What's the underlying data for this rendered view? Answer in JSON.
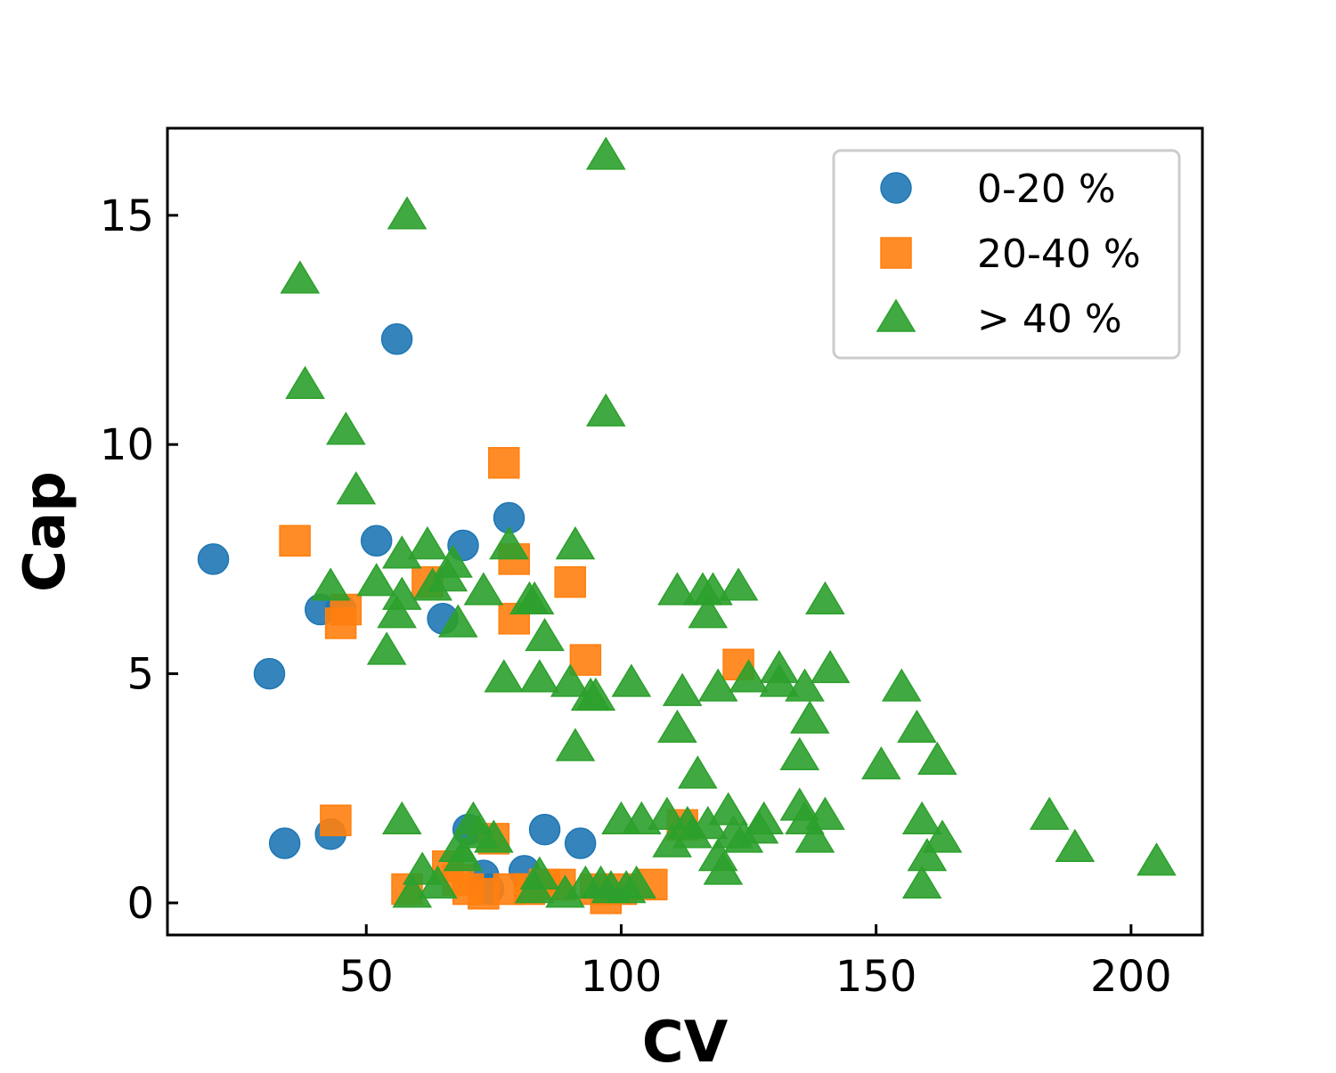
{
  "chart_data": {
    "type": "scatter",
    "xlabel": "CV",
    "ylabel": "Cap",
    "xlim": [
      11,
      214
    ],
    "ylim": [
      -0.7,
      16.9
    ],
    "xticks": [
      50,
      100,
      150,
      200
    ],
    "yticks": [
      0,
      5,
      10,
      15
    ],
    "grid": false,
    "legend_position": "top-right",
    "series": [
      {
        "name": "0-20 %",
        "marker": "circle",
        "color": "#1f77b4",
        "points": [
          [
            20,
            7.5
          ],
          [
            31,
            5.0
          ],
          [
            34,
            1.3
          ],
          [
            41,
            6.4
          ],
          [
            43,
            1.5
          ],
          [
            45,
            6.4
          ],
          [
            52,
            7.9
          ],
          [
            56,
            12.3
          ],
          [
            65,
            6.2
          ],
          [
            69,
            7.8
          ],
          [
            70,
            1.6
          ],
          [
            73,
            0.6
          ],
          [
            74,
            0.3
          ],
          [
            78,
            8.4
          ],
          [
            81,
            0.7
          ],
          [
            85,
            1.6
          ],
          [
            92,
            1.3
          ]
        ]
      },
      {
        "name": "20-40 %",
        "marker": "square",
        "color": "#ff7f0e",
        "points": [
          [
            36,
            7.9
          ],
          [
            44,
            1.8
          ],
          [
            45,
            6.1
          ],
          [
            46,
            6.4
          ],
          [
            58,
            0.3
          ],
          [
            62,
            7.0
          ],
          [
            66,
            0.8
          ],
          [
            68,
            0.5
          ],
          [
            70,
            0.3
          ],
          [
            73,
            0.2
          ],
          [
            75,
            1.4
          ],
          [
            77,
            9.6
          ],
          [
            78,
            0.3
          ],
          [
            79,
            7.5
          ],
          [
            79,
            6.2
          ],
          [
            82,
            0.3
          ],
          [
            85,
            0.4
          ],
          [
            88,
            0.4
          ],
          [
            90,
            7.0
          ],
          [
            93,
            5.3
          ],
          [
            95,
            0.3
          ],
          [
            97,
            0.1
          ],
          [
            100,
            0.3
          ],
          [
            106,
            0.4
          ],
          [
            112,
            1.7
          ],
          [
            123,
            5.2
          ]
        ]
      },
      {
        "name": "> 40 %",
        "marker": "triangle",
        "color": "#2ca02c",
        "points": [
          [
            37,
            13.6
          ],
          [
            38,
            11.3
          ],
          [
            43,
            6.9
          ],
          [
            46,
            10.3
          ],
          [
            48,
            9.0
          ],
          [
            52,
            7.0
          ],
          [
            54,
            5.5
          ],
          [
            56,
            6.3
          ],
          [
            57,
            6.7
          ],
          [
            57,
            7.6
          ],
          [
            57,
            1.8
          ],
          [
            58,
            15.0
          ],
          [
            59,
            0.2
          ],
          [
            61,
            0.7
          ],
          [
            62,
            7.8
          ],
          [
            63,
            6.9
          ],
          [
            64,
            0.4
          ],
          [
            66,
            7.1
          ],
          [
            67,
            7.4
          ],
          [
            68,
            6.1
          ],
          [
            68,
            1.2
          ],
          [
            69,
            1.0
          ],
          [
            71,
            1.8
          ],
          [
            72,
            1.5
          ],
          [
            73,
            6.8
          ],
          [
            75,
            1.4
          ],
          [
            77,
            4.9
          ],
          [
            78,
            7.8
          ],
          [
            82,
            6.6
          ],
          [
            83,
            6.6
          ],
          [
            83,
            0.3
          ],
          [
            84,
            0.6
          ],
          [
            84,
            4.9
          ],
          [
            85,
            5.8
          ],
          [
            89,
            0.2
          ],
          [
            90,
            4.8
          ],
          [
            91,
            3.4
          ],
          [
            91,
            7.8
          ],
          [
            93,
            0.4
          ],
          [
            94,
            4.5
          ],
          [
            95,
            4.5
          ],
          [
            96,
            0.4
          ],
          [
            97,
            10.7
          ],
          [
            97,
            16.3
          ],
          [
            98,
            0.3
          ],
          [
            100,
            1.8
          ],
          [
            101,
            0.3
          ],
          [
            102,
            4.8
          ],
          [
            103,
            0.4
          ],
          [
            104,
            1.8
          ],
          [
            109,
            1.9
          ],
          [
            110,
            1.3
          ],
          [
            111,
            3.8
          ],
          [
            111,
            6.8
          ],
          [
            112,
            4.6
          ],
          [
            113,
            1.7
          ],
          [
            114,
            1.5
          ],
          [
            115,
            2.8
          ],
          [
            116,
            6.8
          ],
          [
            117,
            6.3
          ],
          [
            117,
            1.7
          ],
          [
            118,
            6.8
          ],
          [
            119,
            4.7
          ],
          [
            119,
            1.0
          ],
          [
            120,
            0.7
          ],
          [
            121,
            2.0
          ],
          [
            122,
            1.5
          ],
          [
            123,
            6.9
          ],
          [
            124,
            1.4
          ],
          [
            125,
            4.9
          ],
          [
            127,
            1.6
          ],
          [
            128,
            1.8
          ],
          [
            131,
            5.1
          ],
          [
            131,
            4.8
          ],
          [
            135,
            3.2
          ],
          [
            135,
            2.1
          ],
          [
            136,
            4.7
          ],
          [
            136,
            1.8
          ],
          [
            137,
            4.0
          ],
          [
            138,
            1.4
          ],
          [
            140,
            1.9
          ],
          [
            140,
            6.6
          ],
          [
            141,
            5.1
          ],
          [
            151,
            3.0
          ],
          [
            155,
            4.7
          ],
          [
            158,
            3.8
          ],
          [
            159,
            1.8
          ],
          [
            159,
            0.4
          ],
          [
            160,
            1.0
          ],
          [
            162,
            3.1
          ],
          [
            163,
            1.4
          ],
          [
            184,
            1.9
          ],
          [
            189,
            1.2
          ],
          [
            205,
            0.9
          ]
        ]
      }
    ]
  }
}
